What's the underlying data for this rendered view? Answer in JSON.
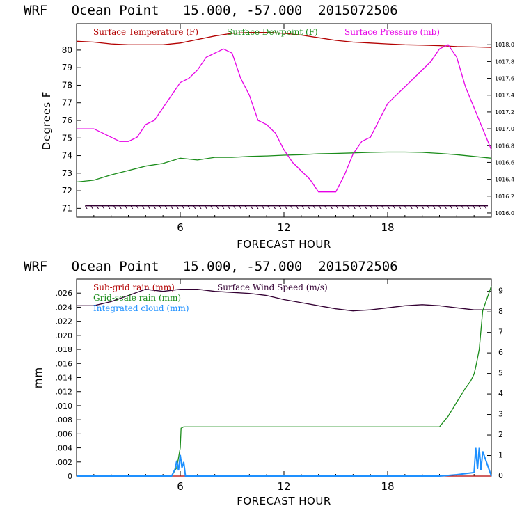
{
  "chart_data": [
    {
      "type": "line",
      "title": "WRF   Ocean Point   15.000, -57.000  2015072506",
      "xlabel": "FORECAST HOUR",
      "ylabel": "Degrees F",
      "xlim": [
        0,
        24
      ],
      "ylim": [
        70.5,
        81.5
      ],
      "y2lim": [
        1015.95,
        1018.25
      ],
      "xticks": [
        "6",
        "12",
        "18"
      ],
      "yticks": [
        "71",
        "72",
        "73",
        "74",
        "75",
        "76",
        "77",
        "78",
        "79",
        "80"
      ],
      "y2ticks": [
        "1016.0",
        "1016.2",
        "1016.4",
        "1016.6",
        "1016.8",
        "1017.0",
        "1017.2",
        "1017.4",
        "1017.6",
        "1017.8",
        "1018.0"
      ],
      "legend_placement": "top",
      "series": [
        {
          "name": "Surface Temperature (F)",
          "color": "#b30000",
          "axis": "left",
          "x": [
            0,
            1,
            2,
            3,
            4,
            5,
            6,
            7,
            8,
            9,
            10,
            11,
            12,
            13,
            14,
            15,
            16,
            17,
            18,
            19,
            20,
            21,
            22,
            23,
            24
          ],
          "y": [
            80.5,
            80.45,
            80.35,
            80.3,
            80.3,
            80.3,
            80.4,
            80.6,
            80.8,
            80.95,
            81.0,
            81.0,
            80.95,
            80.85,
            80.7,
            80.55,
            80.45,
            80.4,
            80.35,
            80.3,
            80.28,
            80.25,
            80.2,
            80.18,
            80.15
          ]
        },
        {
          "name": "Surface Dewpoint (F)",
          "color": "#1a8c1a",
          "axis": "left",
          "x": [
            0,
            1,
            2,
            3,
            4,
            5,
            6,
            7,
            8,
            9,
            10,
            11,
            12,
            13,
            14,
            15,
            16,
            17,
            18,
            19,
            20,
            21,
            22,
            23,
            24
          ],
          "y": [
            72.5,
            72.6,
            72.9,
            73.15,
            73.4,
            73.55,
            73.85,
            73.75,
            73.9,
            73.9,
            73.95,
            73.98,
            74.02,
            74.05,
            74.1,
            74.12,
            74.15,
            74.18,
            74.2,
            74.2,
            74.18,
            74.12,
            74.05,
            73.95,
            73.85
          ]
        },
        {
          "name": "Surface Pressure (mb)",
          "color": "#e600e6",
          "axis": "right",
          "x": [
            0,
            1,
            1.5,
            2,
            2.5,
            3,
            3.5,
            4,
            4.5,
            5,
            5.5,
            6,
            6.5,
            7,
            7.5,
            8,
            8.5,
            9,
            9.5,
            10,
            10.5,
            11,
            11.5,
            12,
            12.5,
            13,
            13.5,
            14,
            14.5,
            15,
            15.5,
            16,
            16.5,
            17,
            17.5,
            18,
            18.5,
            19,
            19.5,
            20,
            20.5,
            21,
            21.5,
            22,
            22.5,
            23,
            23.5,
            24
          ],
          "y": [
            1017.0,
            1017.0,
            1016.95,
            1016.9,
            1016.85,
            1016.85,
            1016.9,
            1017.05,
            1017.1,
            1017.25,
            1017.4,
            1017.55,
            1017.6,
            1017.7,
            1017.85,
            1017.9,
            1017.95,
            1017.9,
            1017.6,
            1017.4,
            1017.1,
            1017.05,
            1016.95,
            1016.75,
            1016.6,
            1016.5,
            1016.4,
            1016.25,
            1016.25,
            1016.25,
            1016.45,
            1016.7,
            1016.85,
            1016.9,
            1017.1,
            1017.3,
            1017.4,
            1017.5,
            1017.6,
            1017.7,
            1017.8,
            1017.95,
            1018.0,
            1017.85,
            1017.5,
            1017.25,
            1017.0,
            1016.75
          ]
        }
      ]
    },
    {
      "type": "line",
      "title": "WRF   Ocean Point   15.000, -57.000  2015072506",
      "xlabel": "FORECAST HOUR",
      "ylabel": "mm",
      "xlim": [
        0,
        24
      ],
      "ylim": [
        0,
        0.028
      ],
      "y2lim": [
        0,
        9.6
      ],
      "xticks": [
        "6",
        "12",
        "18"
      ],
      "yticks": [
        "0",
        ".002",
        ".004",
        ".006",
        ".008",
        ".010",
        ".012",
        ".014",
        ".016",
        ".018",
        ".020",
        ".022",
        ".024",
        ".026"
      ],
      "y2ticks": [
        "0",
        "1",
        "2",
        "3",
        "4",
        "5",
        "6",
        "7",
        "8",
        "9"
      ],
      "legend_placement": "top-left",
      "series": [
        {
          "name": "Sub-grid rain (mm)",
          "color": "#b30000",
          "axis": "left",
          "x": [
            0,
            24
          ],
          "y": [
            0,
            0
          ]
        },
        {
          "name": "Surface Wind Speed (m/s)",
          "color": "#330033",
          "axis": "right",
          "x": [
            0,
            1,
            2,
            3,
            4,
            5,
            6,
            7,
            8,
            9,
            10,
            11,
            12,
            13,
            14,
            15,
            16,
            17,
            18,
            19,
            20,
            21,
            22,
            23,
            24
          ],
          "y": [
            8.3,
            8.3,
            8.5,
            8.8,
            9.1,
            9.0,
            9.1,
            9.1,
            9.0,
            8.95,
            8.9,
            8.8,
            8.6,
            8.45,
            8.3,
            8.15,
            8.05,
            8.1,
            8.2,
            8.3,
            8.35,
            8.3,
            8.2,
            8.1,
            8.1
          ]
        },
        {
          "name": "Grid-scale rain (mm)",
          "color": "#1a8c1a",
          "axis": "left",
          "x": [
            0,
            5.5,
            5.8,
            6.0,
            6.05,
            6.2,
            21.0,
            21.5,
            22.0,
            22.5,
            22.8,
            23.0,
            23.1,
            23.3,
            23.5,
            24
          ],
          "y": [
            0,
            0,
            0.0012,
            0.004,
            0.0068,
            0.007,
            0.007,
            0.0085,
            0.0105,
            0.0125,
            0.0135,
            0.0145,
            0.0155,
            0.018,
            0.0235,
            0.027
          ]
        },
        {
          "name": "Integrated cloud (mm)",
          "color": "#1e90ff",
          "axis": "left",
          "x": [
            0,
            5.5,
            5.7,
            5.8,
            5.9,
            6.0,
            6.1,
            6.2,
            6.3,
            21.0,
            22.0,
            23.0,
            23.1,
            23.2,
            23.3,
            23.4,
            23.5,
            24
          ],
          "y": [
            0,
            0,
            0.001,
            0.0022,
            0.0008,
            0.003,
            0.0012,
            0.002,
            0,
            0,
            0.0002,
            0.0005,
            0.004,
            0.001,
            0.004,
            0.0008,
            0.0035,
            0
          ]
        }
      ]
    }
  ]
}
